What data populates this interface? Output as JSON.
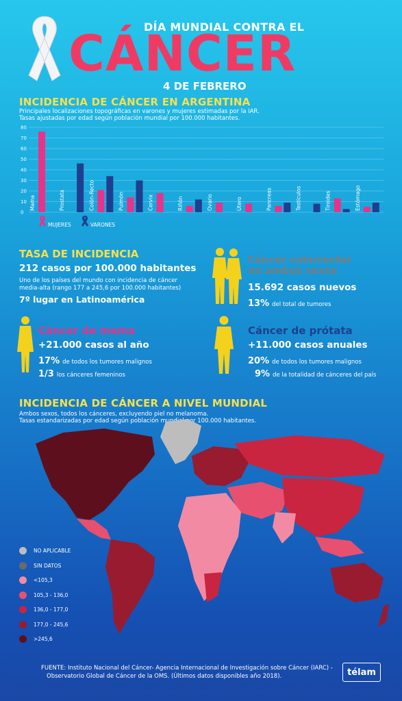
{
  "header": {
    "top_line": "DÍA MUNDIAL CONTRA EL",
    "main_word": "CÁNCER",
    "date": "4 DE FEBRERO"
  },
  "section1": {
    "title": "INCIDENCIA DE CÁNCER EN ARGENTINA",
    "subtitle1": "Principales localizaciones topográficas en varones y mujeres estimadas por la IAR.",
    "subtitle2": "Tasas ajustadas por edad según población mundial por 100.000 habitantes."
  },
  "chart_data": {
    "type": "bar",
    "categories": [
      "Mama",
      "Prostata",
      "Colón-Recto",
      "Pulmón",
      "Cervix",
      "Riñón",
      "Ovario",
      "Útero",
      "Pancreas",
      "Testículos",
      "Tiroides",
      "Estómago"
    ],
    "series": [
      {
        "name": "MUJERES",
        "color": "#e8338a",
        "values": [
          76,
          null,
          21,
          14,
          18,
          6,
          9,
          8,
          6,
          null,
          13,
          5
        ]
      },
      {
        "name": "VARONES",
        "color": "#1e3f8f",
        "values": [
          null,
          46,
          34,
          30,
          null,
          12,
          null,
          null,
          9,
          8,
          3,
          9
        ]
      }
    ],
    "ylim": [
      0,
      80
    ],
    "yticks": [
      0,
      10,
      20,
      30,
      40,
      50,
      60,
      70,
      80
    ],
    "grid": true,
    "legend": "bottom-left"
  },
  "legend1": {
    "mujeres": "MUJERES",
    "varones": "VARONES"
  },
  "tasa": {
    "title": "TASA DE INCIDENCIA",
    "line1": "212 casos por 100.000 habitantes",
    "line2": "Uno de los países del mundo con incidencia de cáncer",
    "line3": "media-alta (rango 177 a 245,6 por 100.000 habitantes)",
    "line4": "7º lugar en Latinoamérica"
  },
  "colorrectal": {
    "title1": "Cáncer colorrectal",
    "title2": "en ambos sexos",
    "line1": "15.692 casos nuevos",
    "pct1": "13%",
    "pct1_text": "del total de tumores"
  },
  "mama": {
    "title": "Cáncer de mama",
    "line1": "+21.000 casos al año",
    "pct1": "17%",
    "pct1_text": "de todos los tumores malignos",
    "pct2": "1/3",
    "pct2_text": "los cánceres femeninos"
  },
  "prostata": {
    "title": "Cáncer de prótata",
    "line1": "+11.000 casos anuales",
    "pct1": "20%",
    "pct1_text": "de todos los tumores malignos",
    "pct2": "9%",
    "pct2_text": "de la totalidad de cánceres del país"
  },
  "section2": {
    "title": "INCIDENCIA DE CÁNCER A NIVEL MUNDIAL",
    "subtitle1": "Ambos sexos, todos los cánceres, excluyendo piel no melanoma.",
    "subtitle2": "Tasas estandarizadas por edad según población mundial por 100.000 habitantes."
  },
  "map_legend": [
    {
      "label": "NO APLICABLE",
      "color": "#bdbdbd"
    },
    {
      "label": "SIN DATOS",
      "color": "#6b6b6b"
    },
    {
      "label": "<105,3",
      "color": "#f38aa3"
    },
    {
      "label": "105,3 - 136,0",
      "color": "#e8506f"
    },
    {
      "label": "136,0 - 177,0",
      "color": "#c92540"
    },
    {
      "label": "177,0 - 245,6",
      "color": "#981b30"
    },
    {
      "label": ">245,6",
      "color": "#5e0f1d"
    }
  ],
  "footer": {
    "line1": "FUENTE: Instituto Nacional del Cáncer- Agencia Internacional de Investigación sobre Cáncer (IARC) -",
    "line2": "Observatorio Global de Cáncer de la OMS. (Últimos datos disponibles año 2018).",
    "brand": "télam"
  }
}
